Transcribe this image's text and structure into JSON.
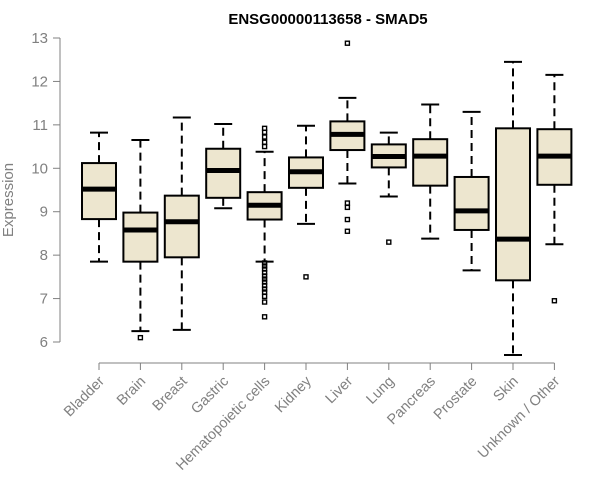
{
  "chart_data": {
    "type": "boxplot",
    "title": "ENSG00000113658 - SMAD5",
    "xlabel": "",
    "ylabel": "Expression",
    "ylim": [
      6,
      13
    ],
    "yticks": [
      6,
      7,
      8,
      9,
      10,
      11,
      12,
      13
    ],
    "grid": false,
    "colors": {
      "box_fill": "#ede6cf",
      "stroke": "#000000",
      "axis": "#808080"
    },
    "categories": [
      "Bladder",
      "Brain",
      "Breast",
      "Gastric",
      "Hematopoietic cells",
      "Kidney",
      "Liver",
      "Lung",
      "Pancreas",
      "Prostate",
      "Skin",
      "Unknown / Other"
    ],
    "series": [
      {
        "name": "Bladder",
        "whisker_low": 7.85,
        "q1": 8.83,
        "median": 9.52,
        "q3": 10.12,
        "whisker_high": 10.82,
        "outliers": []
      },
      {
        "name": "Brain",
        "whisker_low": 6.25,
        "q1": 7.85,
        "median": 8.58,
        "q3": 8.98,
        "whisker_high": 10.65,
        "outliers": [
          6.1
        ]
      },
      {
        "name": "Breast",
        "whisker_low": 6.28,
        "q1": 7.95,
        "median": 8.77,
        "q3": 9.37,
        "whisker_high": 11.17,
        "outliers": []
      },
      {
        "name": "Gastric",
        "whisker_low": 9.08,
        "q1": 9.32,
        "median": 9.95,
        "q3": 10.45,
        "whisker_high": 11.02,
        "outliers": []
      },
      {
        "name": "Hematopoietic cells",
        "whisker_low": 7.85,
        "q1": 8.82,
        "median": 9.15,
        "q3": 9.45,
        "whisker_high": 10.38,
        "outliers": [
          10.92,
          10.83,
          10.72,
          10.6,
          10.5,
          7.82,
          7.75,
          7.68,
          7.6,
          7.52,
          7.45,
          7.38,
          7.3,
          7.22,
          7.15,
          7.05,
          6.92,
          6.58
        ]
      },
      {
        "name": "Kidney",
        "whisker_low": 8.72,
        "q1": 9.55,
        "median": 9.92,
        "q3": 10.25,
        "whisker_high": 10.98,
        "outliers": [
          7.5
        ]
      },
      {
        "name": "Liver",
        "whisker_low": 9.65,
        "q1": 10.42,
        "median": 10.78,
        "q3": 11.08,
        "whisker_high": 11.62,
        "outliers": [
          12.88,
          9.2,
          9.1,
          8.82,
          8.55
        ]
      },
      {
        "name": "Lung",
        "whisker_low": 9.35,
        "q1": 10.02,
        "median": 10.27,
        "q3": 10.55,
        "whisker_high": 10.82,
        "outliers": [
          8.3
        ]
      },
      {
        "name": "Pancreas",
        "whisker_low": 8.38,
        "q1": 9.6,
        "median": 10.28,
        "q3": 10.67,
        "whisker_high": 11.47,
        "outliers": []
      },
      {
        "name": "Prostate",
        "whisker_low": 7.65,
        "q1": 8.58,
        "median": 9.02,
        "q3": 9.8,
        "whisker_high": 11.3,
        "outliers": []
      },
      {
        "name": "Skin",
        "whisker_low": 5.7,
        "q1": 7.42,
        "median": 8.37,
        "q3": 10.92,
        "whisker_high": 12.45,
        "outliers": []
      },
      {
        "name": "Unknown / Other",
        "whisker_low": 8.25,
        "q1": 9.62,
        "median": 10.28,
        "q3": 10.9,
        "whisker_high": 12.15,
        "outliers": [
          6.95
        ]
      }
    ]
  }
}
